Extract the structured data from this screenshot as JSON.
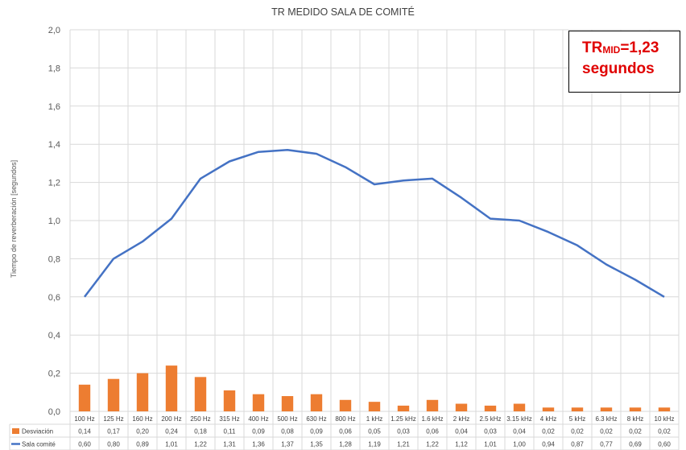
{
  "chart_data": {
    "type": "bar+line",
    "title": "TR MEDIDO SALA DE COMITÉ",
    "ylabel": "Tiempo de reverberación [segundos]",
    "xlabel": "",
    "ylim": [
      0,
      2.0
    ],
    "yticks": [
      "0,0",
      "0,2",
      "0,4",
      "0,6",
      "0,8",
      "1,0",
      "1,2",
      "1,4",
      "1,6",
      "1,8",
      "2,0"
    ],
    "grid": true,
    "categories": [
      "100 Hz",
      "125 Hz",
      "160 Hz",
      "200 Hz",
      "250 Hz",
      "315 Hz",
      "400 Hz",
      "500 Hz",
      "630 Hz",
      "800 Hz",
      "1 kHz",
      "1.25 kHz",
      "1.6 kHz",
      "2 kHz",
      "2.5 kHz",
      "3.15 kHz",
      "4 kHz",
      "5 kHz",
      "6.3 kHz",
      "8 kHz",
      "10 kHz"
    ],
    "series": [
      {
        "name": "Desviación",
        "kind": "bar",
        "color": "#ed7d31",
        "values": [
          0.14,
          0.17,
          0.2,
          0.24,
          0.18,
          0.11,
          0.09,
          0.08,
          0.09,
          0.06,
          0.05,
          0.03,
          0.06,
          0.04,
          0.03,
          0.04,
          0.02,
          0.02,
          0.02,
          0.02,
          0.02
        ],
        "labels": [
          "0,14",
          "0,17",
          "0,20",
          "0,24",
          "0,18",
          "0,11",
          "0,09",
          "0,08",
          "0,09",
          "0,06",
          "0,05",
          "0,03",
          "0,06",
          "0,04",
          "0,03",
          "0,04",
          "0,02",
          "0,02",
          "0,02",
          "0,02",
          "0,02"
        ]
      },
      {
        "name": "Sala comité",
        "kind": "line",
        "color": "#4472c4",
        "values": [
          0.6,
          0.8,
          0.89,
          1.01,
          1.22,
          1.31,
          1.36,
          1.37,
          1.35,
          1.28,
          1.19,
          1.21,
          1.22,
          1.12,
          1.01,
          1.0,
          0.94,
          0.87,
          0.77,
          0.69,
          0.6
        ],
        "labels": [
          "0,60",
          "0,80",
          "0,89",
          "1,01",
          "1,22",
          "1,31",
          "1,36",
          "1,37",
          "1,35",
          "1,28",
          "1,19",
          "1,21",
          "1,22",
          "1,12",
          "1,01",
          "1,00",
          "0,94",
          "0,87",
          "0,77",
          "0,69",
          "0,60"
        ]
      }
    ],
    "legend": "data-table",
    "annotation": {
      "text_main": "TR",
      "text_sub": "MID",
      "text_value": "=1,23",
      "text_line2": "segundos",
      "color": "#e00000"
    }
  }
}
